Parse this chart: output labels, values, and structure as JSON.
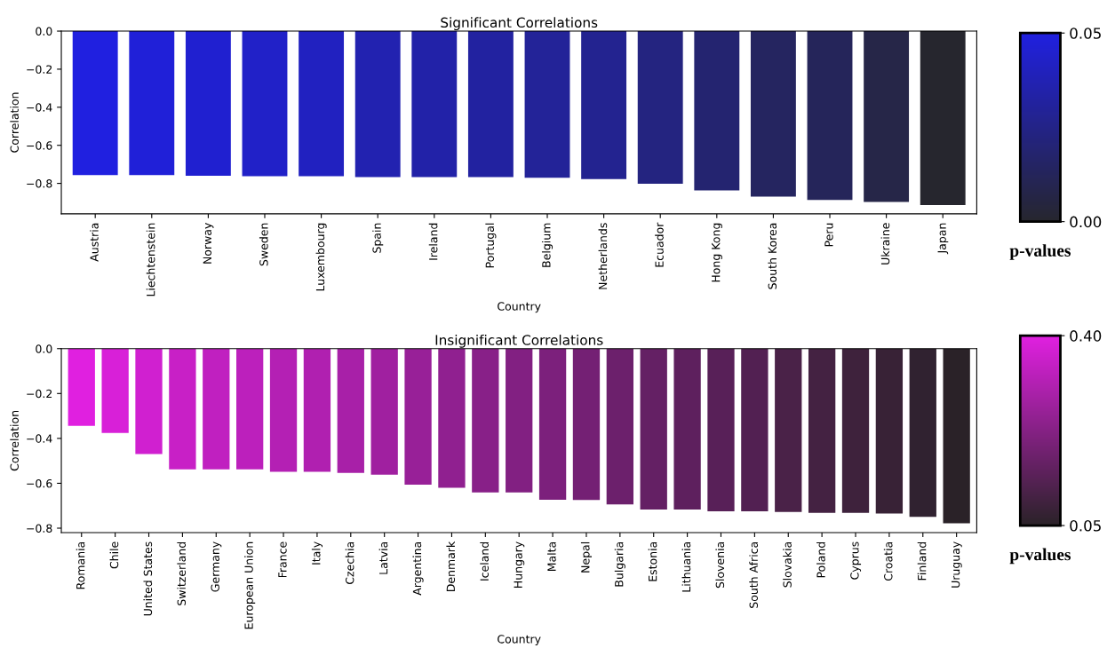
{
  "chart_data": [
    {
      "type": "bar",
      "title": "Significant Correlations",
      "xlabel": "Country",
      "ylabel": "Correlation",
      "categories": [
        "Austria",
        "Liechtenstein",
        "Norway",
        "Sweden",
        "Luxembourg",
        "Spain",
        "Ireland",
        "Portugal",
        "Belgium",
        "Netherlands",
        "Ecuador",
        "Hong Kong",
        "South Korea",
        "Peru",
        "Ukraine",
        "Japan"
      ],
      "values": [
        -0.757,
        -0.757,
        -0.76,
        -0.762,
        -0.762,
        -0.767,
        -0.767,
        -0.767,
        -0.77,
        -0.777,
        -0.802,
        -0.837,
        -0.87,
        -0.887,
        -0.897,
        -0.914
      ],
      "colors": [
        "#2020e0",
        "#2020d8",
        "#2020d0",
        "#2121c8",
        "#2121c0",
        "#2222b0",
        "#2222a8",
        "#2222a0",
        "#232398",
        "#232390",
        "#242480",
        "#242470",
        "#252560",
        "#25255a",
        "#262648",
        "#26262e"
      ],
      "ylim": [
        -0.96,
        0
      ],
      "yticks": [
        {
          "value": 0,
          "label": "0.0"
        },
        {
          "value": -0.2,
          "label": "−0.2"
        },
        {
          "value": -0.4,
          "label": "−0.4"
        },
        {
          "value": -0.6,
          "label": "−0.6"
        },
        {
          "value": -0.8,
          "label": "−0.8"
        }
      ],
      "clim": [
        0,
        0.05
      ],
      "cticks": [
        {
          "value": 0,
          "label": "0.00"
        },
        0.05
      ],
      "clabel": "p-values"
    },
    {
      "type": "bar",
      "title": "Insignificant Correlations",
      "xlabel": "Country",
      "ylabel": "Correlation",
      "categories": [
        "Romania",
        "Chile",
        "United States",
        "Switzerland",
        "Germany",
        "European Union",
        "France",
        "Italy",
        "Czechia",
        "Latvia",
        "Argentina",
        "Denmark",
        "Iceland",
        "Hungary",
        "Malta",
        "Nepal",
        "Bulgaria",
        "Estonia",
        "Lithuania",
        "Slovenia",
        "South Africa",
        "Slovakia",
        "Poland",
        "Cyprus",
        "Croatia",
        "Finland",
        "Uruguay"
      ],
      "values": [
        -0.344,
        -0.376,
        -0.47,
        -0.538,
        -0.538,
        -0.538,
        -0.549,
        -0.549,
        -0.554,
        -0.562,
        -0.606,
        -0.62,
        -0.641,
        -0.641,
        -0.673,
        -0.674,
        -0.694,
        -0.717,
        -0.717,
        -0.725,
        -0.725,
        -0.728,
        -0.732,
        -0.732,
        -0.735,
        -0.75,
        -0.778
      ],
      "colors": [
        "#e020e0",
        "#d820d8",
        "#d020d0",
        "#c820c6",
        "#c020c0",
        "#bc20bc",
        "#b420b4",
        "#b020b0",
        "#a820a8",
        "#a020a0",
        "#982098",
        "#902090",
        "#882088",
        "#822082",
        "#7c207c",
        "#742074",
        "#6c206c",
        "#642064",
        "#5e205e",
        "#582058",
        "#522052",
        "#4a2248",
        "#442242",
        "#3e223c",
        "#382236",
        "#302230",
        "#2a2228"
      ],
      "ylim": [
        -0.82,
        0
      ],
      "yticks": [
        {
          "value": 0,
          "label": "0.0"
        },
        {
          "value": -0.2,
          "label": "−0.2"
        },
        {
          "value": -0.4,
          "label": "−0.4"
        },
        {
          "value": -0.6,
          "label": "−0.6"
        },
        {
          "value": -0.8,
          "label": "−0.8"
        }
      ],
      "clim": [
        0.05,
        0.4
      ],
      "cticks": [
        0.05,
        {
          "value": 0.4,
          "label": "0.40"
        }
      ],
      "clabel": "p-values"
    }
  ]
}
